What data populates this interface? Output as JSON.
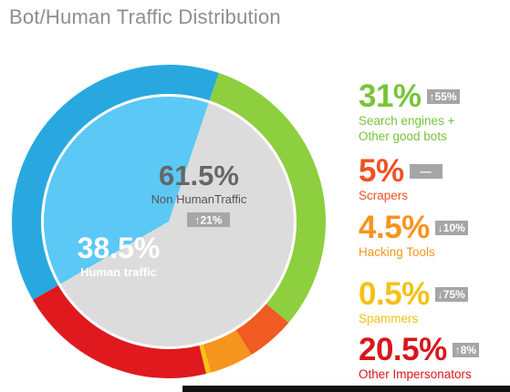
{
  "title": "Bot/Human Traffic Distribution",
  "chart_data": {
    "type": "donut",
    "title": "Bot/Human Traffic Distribution",
    "slices": [
      {
        "label": "Human traffic",
        "value": 38.5,
        "color": "#29a8e0"
      },
      {
        "label": "Search engines + Other good bots",
        "value": 31,
        "color": "#8dcf3e"
      },
      {
        "label": "Scrapers",
        "value": 5,
        "color": "#f05a23"
      },
      {
        "label": "Hacking Tools",
        "value": 4.5,
        "color": "#f7941d"
      },
      {
        "label": "Spammers",
        "value": 0.5,
        "color": "#f9c312"
      },
      {
        "label": "Other Impersonators",
        "value": 20.5,
        "color": "#e0191e"
      }
    ],
    "inner_pie": [
      {
        "label": "Human traffic",
        "value": 38.5,
        "color": "#5bc8f5"
      },
      {
        "label": "Non HumanTraffic",
        "value": 61.5,
        "color": "#dcdcdc"
      }
    ]
  },
  "center": {
    "non_human": {
      "pct": "61.5%",
      "label": "Non HumanTraffic",
      "change": "↑21%"
    },
    "human": {
      "pct": "38.5%",
      "label": "Human traffic"
    }
  },
  "legend": [
    {
      "pct": "31%",
      "change": "↑55%",
      "label_lines": [
        "Search engines +",
        "Other good bots"
      ],
      "color": "#78c43a"
    },
    {
      "pct": "5%",
      "change": "—",
      "label_lines": [
        "Scrapers"
      ],
      "color": "#ef5122"
    },
    {
      "pct": "4.5%",
      "change": "↓10%",
      "label_lines": [
        "Hacking Tools"
      ],
      "color": "#f7941d"
    },
    {
      "pct": "0.5%",
      "change": "↓75%",
      "label_lines": [
        "Spammers"
      ],
      "color": "#f5c016"
    },
    {
      "pct": "20.5%",
      "change": "↑8%",
      "label_lines": [
        "Other Impersonators"
      ],
      "color": "#d9161c"
    }
  ]
}
